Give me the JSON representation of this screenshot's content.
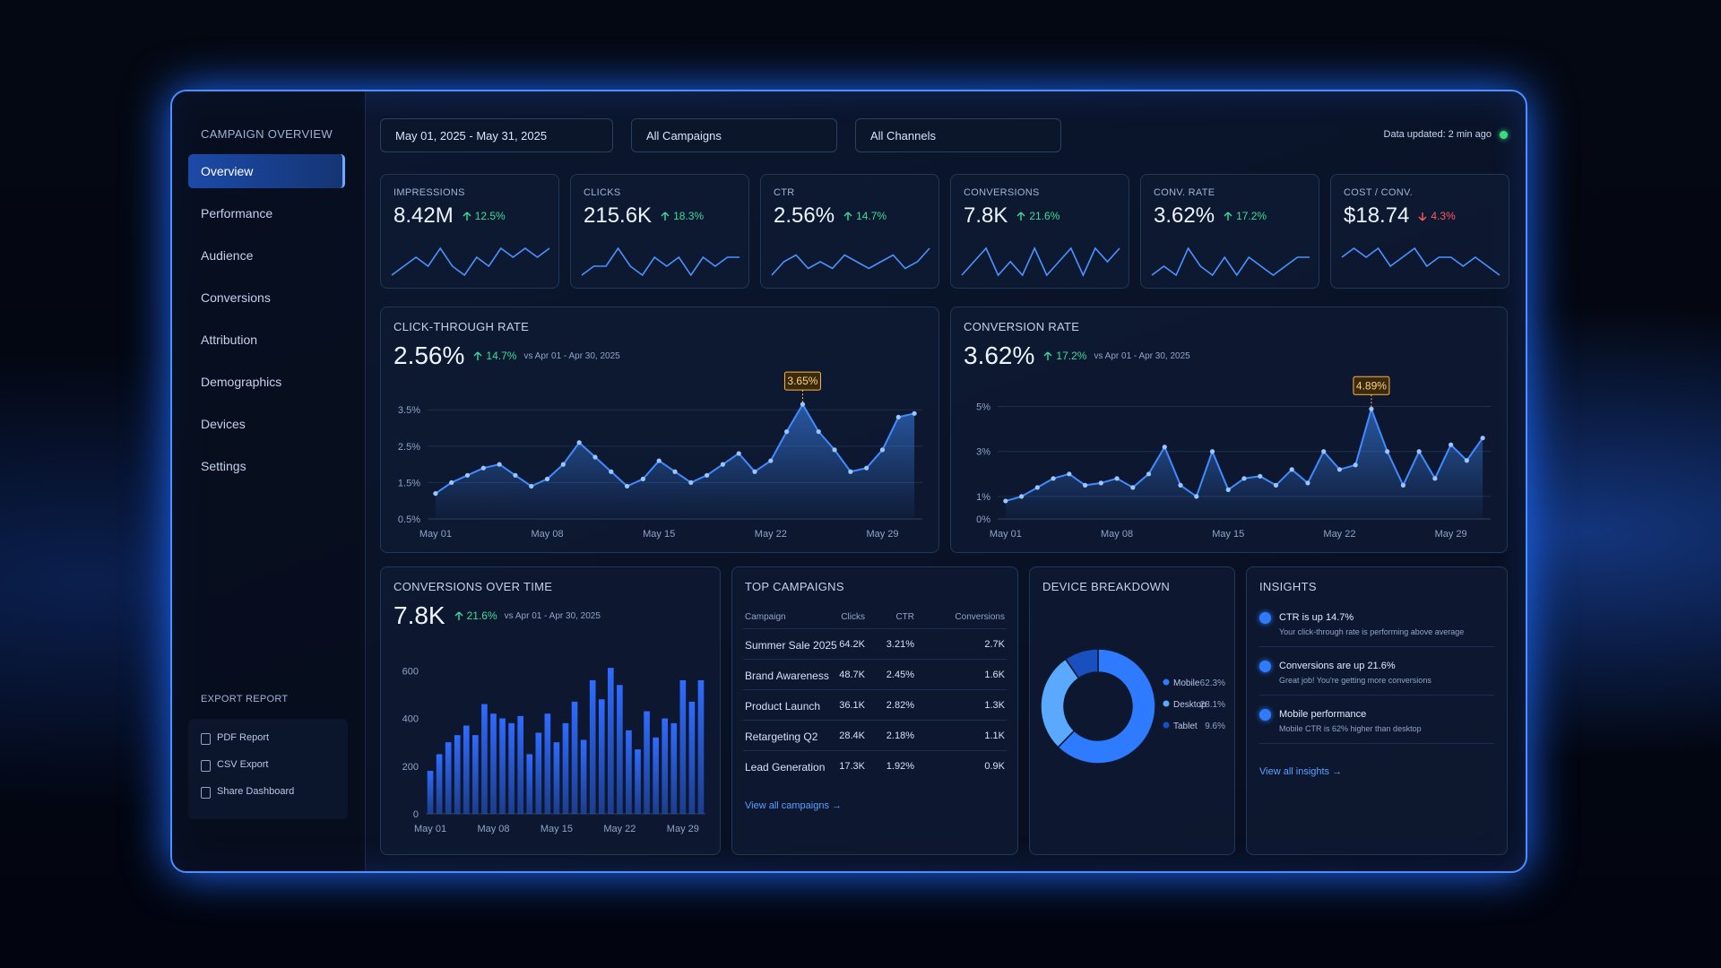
{
  "sidebar": {
    "title": "CAMPAIGN OVERVIEW",
    "nav": [
      "Overview",
      "Performance",
      "Audience",
      "Conversions",
      "Attribution",
      "Demographics",
      "Devices",
      "Settings"
    ],
    "active": 0,
    "export": {
      "title": "EXPORT REPORT",
      "items": [
        "PDF Report",
        "CSV Export",
        "Share Dashboard"
      ]
    }
  },
  "filters": {
    "date": "May 01, 2025 - May 31, 2025",
    "campaigns": "All Campaigns",
    "channels": "All Channels",
    "updated": "Data updated: 2 min ago"
  },
  "kpis": [
    {
      "label": "IMPRESSIONS",
      "value": "8.42M",
      "change": "12.5%",
      "direction": "up",
      "trend": [
        3,
        4,
        5,
        4,
        6,
        4,
        3,
        5,
        4,
        6,
        5,
        6,
        5,
        6
      ]
    },
    {
      "label": "CLICKS",
      "value": "215.6K",
      "change": "18.3%",
      "direction": "up",
      "trend": [
        3,
        4,
        4,
        6,
        4,
        3,
        5,
        4,
        5,
        3,
        5,
        4,
        5,
        5
      ]
    },
    {
      "label": "CTR",
      "value": "2.56%",
      "change": "14.7%",
      "direction": "up",
      "trend": [
        2,
        4,
        5,
        3,
        4,
        3,
        5,
        4,
        3,
        4,
        5,
        3,
        4,
        6
      ]
    },
    {
      "label": "CONVERSIONS",
      "value": "7.8K",
      "change": "21.6%",
      "direction": "up",
      "trend": [
        3,
        4,
        5,
        3,
        4,
        3,
        5,
        3,
        4,
        5,
        3,
        5,
        4,
        5
      ]
    },
    {
      "label": "CONV. RATE",
      "value": "3.62%",
      "change": "17.2%",
      "direction": "up",
      "trend": [
        3,
        4,
        3,
        6,
        4,
        3,
        5,
        3,
        5,
        4,
        3,
        4,
        5,
        5
      ]
    },
    {
      "label": "COST / CONV.",
      "value": "$18.74",
      "change": "4.3%",
      "direction": "down",
      "trend": [
        4,
        5,
        4,
        5,
        3,
        4,
        5,
        3,
        4,
        4,
        3,
        4,
        3,
        2
      ]
    }
  ],
  "chart_data": [
    {
      "type": "line",
      "title": "CLICK-THROUGH RATE",
      "headline": "2.56%",
      "change": "14.7%",
      "direction": "up",
      "comparison": "vs Apr 01 - Apr 30, 2025",
      "color": "#3f8bff",
      "grid": true,
      "categories": [
        "May 01",
        null,
        null,
        null,
        null,
        null,
        null,
        "May 08",
        null,
        null,
        null,
        null,
        null,
        null,
        "May 15",
        null,
        null,
        null,
        null,
        null,
        null,
        "May 22",
        null,
        null,
        null,
        null,
        null,
        null,
        "May 29",
        null,
        null
      ],
      "values": [
        1.2,
        1.5,
        1.7,
        1.9,
        2.0,
        1.7,
        1.4,
        1.6,
        2.0,
        2.6,
        2.2,
        1.8,
        1.4,
        1.6,
        2.1,
        1.8,
        1.5,
        1.7,
        2.0,
        2.3,
        1.8,
        2.1,
        2.9,
        3.65,
        2.9,
        2.4,
        1.8,
        1.9,
        2.4,
        3.3,
        3.4
      ],
      "value_labels": [
        null,
        null,
        null,
        null,
        null,
        null,
        null,
        null,
        null,
        null,
        null,
        null,
        null,
        null,
        null,
        null,
        null,
        null,
        null,
        null,
        null,
        null,
        null,
        "3.65%",
        null,
        null,
        null,
        null,
        null,
        null,
        null
      ],
      "ylim": [
        0.5,
        3.9
      ],
      "yticks": [
        {
          "value": 0.5,
          "label": "0.5%"
        },
        {
          "value": 1.5,
          "label": "1.5%"
        },
        {
          "value": 2.5,
          "label": "2.5%"
        },
        {
          "value": 3.5,
          "label": "3.5%"
        }
      ]
    },
    {
      "type": "line",
      "title": "CONVERSION RATE",
      "headline": "3.62%",
      "change": "17.2%",
      "direction": "up",
      "comparison": "vs Apr 01 - Apr 30, 2025",
      "color": "#3f8bff",
      "grid": true,
      "categories": [
        "May 01",
        null,
        null,
        null,
        null,
        null,
        null,
        "May 08",
        null,
        null,
        null,
        null,
        null,
        null,
        "May 15",
        null,
        null,
        null,
        null,
        null,
        null,
        "May 22",
        null,
        null,
        null,
        null,
        null,
        null,
        "May 29",
        null,
        null
      ],
      "values": [
        0.8,
        1.0,
        1.4,
        1.8,
        2.0,
        1.5,
        1.6,
        1.8,
        1.4,
        2.0,
        3.2,
        1.5,
        1.0,
        3.0,
        1.3,
        1.8,
        1.9,
        1.5,
        2.2,
        1.6,
        3.0,
        2.2,
        2.4,
        4.89,
        3.0,
        1.5,
        3.0,
        1.8,
        3.3,
        2.6,
        3.6
      ],
      "value_labels": [
        null,
        null,
        null,
        null,
        null,
        null,
        null,
        null,
        null,
        null,
        null,
        null,
        null,
        null,
        null,
        null,
        null,
        null,
        null,
        null,
        null,
        null,
        null,
        "4.89%",
        null,
        null,
        null,
        null,
        null,
        null,
        null
      ],
      "ylim": [
        0,
        5.5
      ],
      "yticks": [
        {
          "value": 0,
          "label": "0%"
        },
        {
          "value": 1,
          "label": "1%"
        },
        {
          "value": 3,
          "label": "3%"
        },
        {
          "value": 5,
          "label": "5%"
        }
      ]
    },
    {
      "type": "bar",
      "title": "CONVERSIONS OVER TIME",
      "headline": "7.8K",
      "change": "21.6%",
      "direction": "up",
      "comparison": "vs Apr 01 - Apr 30, 2025",
      "color": "#2f6bff",
      "grid": false,
      "categories": [
        "May 01",
        null,
        null,
        null,
        null,
        null,
        null,
        "May 08",
        null,
        null,
        null,
        null,
        null,
        null,
        "May 15",
        null,
        null,
        null,
        null,
        null,
        null,
        "May 22",
        null,
        null,
        null,
        null,
        null,
        null,
        "May 29",
        null,
        null
      ],
      "values": [
        180,
        250,
        300,
        330,
        370,
        330,
        460,
        420,
        400,
        380,
        410,
        250,
        340,
        420,
        300,
        380,
        470,
        310,
        560,
        480,
        612,
        540,
        350,
        270,
        430,
        320,
        400,
        380,
        560,
        470,
        560
      ],
      "ylim": [
        0,
        650
      ],
      "yticks": [
        0,
        200,
        400,
        600
      ]
    },
    {
      "type": "pie",
      "title": "DEVICE BREAKDOWN",
      "categories": [
        "Mobile",
        "Desktop",
        "Tablet"
      ],
      "values": [
        62.3,
        28.1,
        9.6
      ],
      "value_labels": [
        "62.3%",
        "28.1%",
        "9.6%"
      ],
      "colors": [
        "#2f7bff",
        "#5aa9ff",
        "#1a4fc0"
      ]
    }
  ],
  "table": {
    "title": "TOP CAMPAIGNS",
    "columns": [
      "Campaign",
      "Clicks",
      "CTR",
      "Conversions"
    ],
    "rows": [
      [
        "Summer Sale 2025",
        "64.2K",
        "3.21%",
        "2.7K"
      ],
      [
        "Brand Awareness",
        "48.7K",
        "2.45%",
        "1.6K"
      ],
      [
        "Product Launch",
        "36.1K",
        "2.82%",
        "1.3K"
      ],
      [
        "Retargeting Q2",
        "28.4K",
        "2.18%",
        "1.1K"
      ],
      [
        "Lead Generation",
        "17.3K",
        "1.92%",
        "0.9K"
      ]
    ],
    "link": "View all campaigns →"
  },
  "insights": {
    "title": "INSIGHTS",
    "items": [
      {
        "title": "CTR is up 14.7%",
        "text": "Your click-through rate is performing above average"
      },
      {
        "title": "Conversions are up 21.6%",
        "text": "Great job! You're getting more conversions"
      },
      {
        "title": "Mobile performance",
        "text": "Mobile CTR is 62% higher than desktop"
      }
    ],
    "link": "View all insights →"
  }
}
